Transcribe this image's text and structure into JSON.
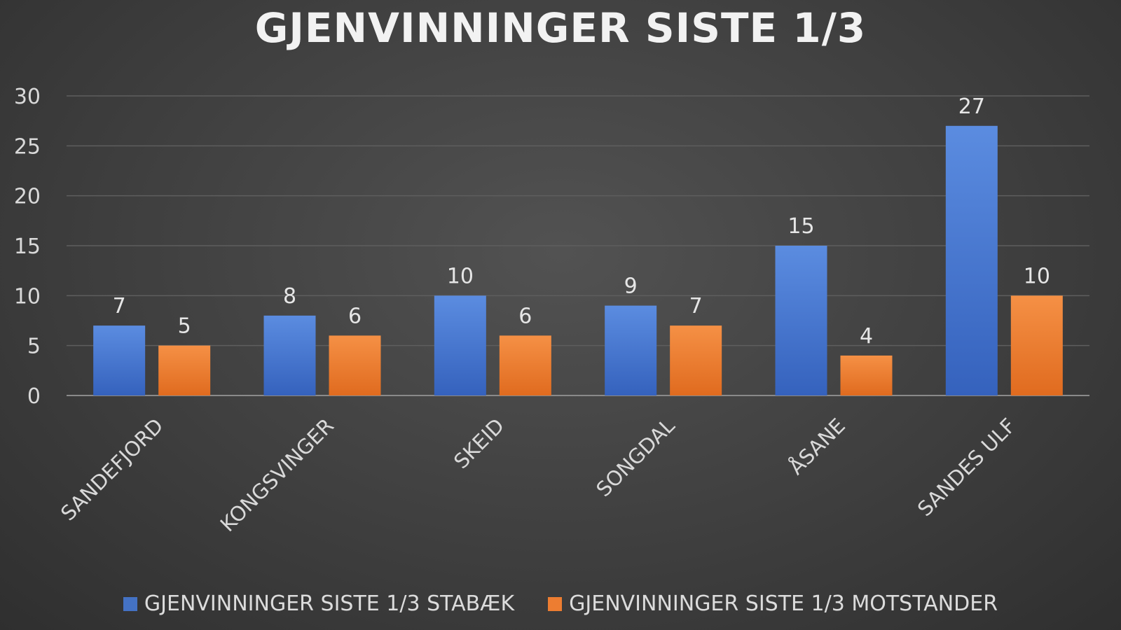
{
  "chart_data": {
    "type": "bar",
    "title": "GJENVINNINGER SISTE 1/3",
    "categories": [
      "SANDEFJORD",
      "KONGSVINGER",
      "SKEID",
      "SONGDAL",
      "ÅSANE",
      "SANDES ULF"
    ],
    "series": [
      {
        "name": "GJENVINNINGER SISTE 1/3 STABÆK",
        "values": [
          7,
          8,
          10,
          9,
          15,
          27
        ],
        "color": "#4472c4"
      },
      {
        "name": "GJENVINNINGER SISTE 1/3 MOTSTANDER",
        "values": [
          5,
          6,
          6,
          7,
          4,
          10
        ],
        "color": "#ed7d31"
      }
    ],
    "ylim": [
      0,
      30
    ],
    "yticks": [
      "0",
      "5",
      "10",
      "15",
      "20",
      "25",
      "30"
    ],
    "xlabel": "",
    "ylabel": "",
    "grid": true,
    "data_labels": true,
    "legend_position": "bottom"
  }
}
